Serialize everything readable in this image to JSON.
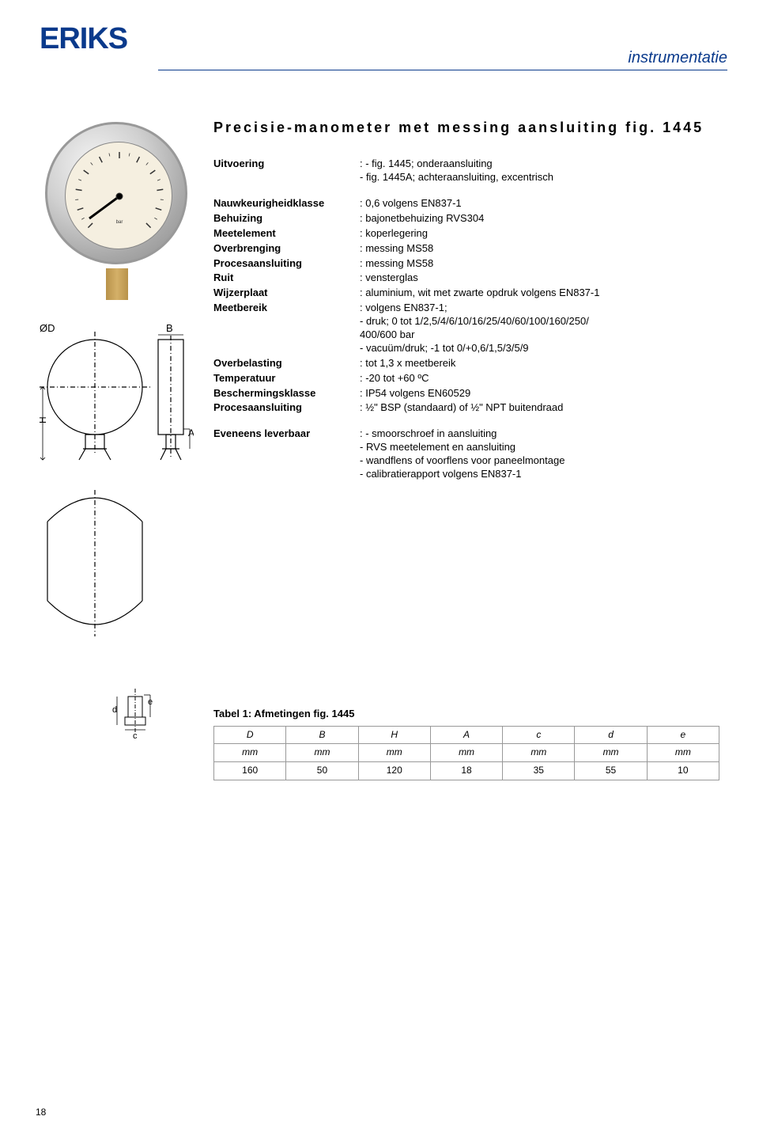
{
  "colors": {
    "brand": "#0a3a8c",
    "text": "#000000",
    "border": "#999999"
  },
  "header": {
    "logo": "ERIKS",
    "right": "instrumentatie"
  },
  "title": "Precisie-manometer met messing aansluiting fig. 1445",
  "specs": [
    {
      "label": "Uitvoering",
      "value": ": - fig. 1445; onderaansluiting\n  - fig. 1445A; achteraansluiting, excentrisch"
    },
    {
      "gap": true
    },
    {
      "label": "Nauwkeurigheidklasse",
      "value": ": 0,6 volgens EN837-1"
    },
    {
      "label": "Behuizing",
      "value": ": bajonetbehuizing RVS304"
    },
    {
      "label": "Meetelement",
      "value": ": koperlegering"
    },
    {
      "label": "Overbrenging",
      "value": ": messing MS58"
    },
    {
      "label": "Procesaansluiting",
      "value": ": messing MS58"
    },
    {
      "label": "Ruit",
      "value": ": vensterglas"
    },
    {
      "label": "Wijzerplaat",
      "value": ": aluminium, wit met zwarte opdruk volgens EN837-1"
    },
    {
      "label": "Meetbereik",
      "value": ": volgens EN837-1;\n  - druk; 0 tot 1/2,5/4/6/10/16/25/40/60/100/160/250/\n  400/600 bar\n  - vacuüm/druk; -1 tot 0/+0,6/1,5/3/5/9"
    },
    {
      "label": "Overbelasting",
      "value": ": tot 1,3 x meetbereik"
    },
    {
      "label": "Temperatuur",
      "value": ": -20 tot +60 ºC"
    },
    {
      "label": "Beschermingsklasse",
      "value": ": IP54 volgens EN60529"
    },
    {
      "label": "Procesaansluiting",
      "value": ": ½\" BSP (standaard) of ½\" NPT buitendraad"
    },
    {
      "gap": true
    },
    {
      "label": "Eveneens leverbaar",
      "value": ": - smoorschroef in aansluiting\n  - RVS meetelement en aansluiting\n  - wandflens of voorflens voor paneelmontage\n  - calibratierapport volgens EN837-1"
    }
  ],
  "table": {
    "title": "Tabel 1: Afmetingen fig. 1445",
    "columns": [
      "D",
      "B",
      "H",
      "A",
      "c",
      "d",
      "e"
    ],
    "units": [
      "mm",
      "mm",
      "mm",
      "mm",
      "mm",
      "mm",
      "mm"
    ],
    "rows": [
      [
        "160",
        "50",
        "120",
        "18",
        "35",
        "55",
        "10"
      ]
    ]
  },
  "diagram": {
    "labels": {
      "OD": "ØD",
      "B": "B",
      "H": "H",
      "A": "A",
      "c": "c",
      "d": "d",
      "e": "e"
    }
  },
  "page_num": "18"
}
